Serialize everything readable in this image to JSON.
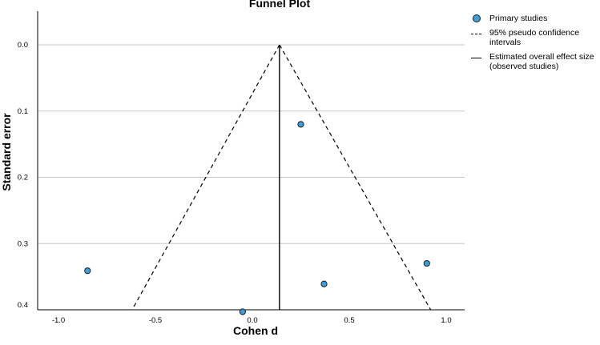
{
  "chart_data": {
    "type": "scatter",
    "title": "Funnel Plot",
    "xlabel": "Cohen d",
    "ylabel": "Standard error",
    "xlim": [
      -1.1,
      1.25
    ],
    "ylim": [
      0.4,
      0.0
    ],
    "y_reversed": true,
    "x_ticks": [
      "-1.0",
      "-0.5",
      "0.0",
      "0.5",
      "1.0"
    ],
    "x_tick_values": [
      -1.0,
      -0.5,
      0.0,
      0.5,
      1.0
    ],
    "y_ticks": [
      "0.0",
      "0.1",
      "0.2",
      "0.3",
      "0.4"
    ],
    "y_tick_values": [
      0.0,
      0.1,
      0.2,
      0.3,
      0.4
    ],
    "grid": "horizontal",
    "legend_position": "right",
    "series": [
      {
        "name": "Primary studies",
        "kind": "points",
        "color": "#3aa0dc",
        "points": [
          {
            "x": -0.85,
            "y": 0.341
          },
          {
            "x": -0.05,
            "y": 0.403
          },
          {
            "x": 0.25,
            "y": 0.12
          },
          {
            "x": 0.37,
            "y": 0.361
          },
          {
            "x": 0.9,
            "y": 0.33
          }
        ]
      },
      {
        "name": "95% pseudo confidence intervals",
        "kind": "dashed-lines",
        "color": "#000000",
        "apex": {
          "x": 0.14,
          "y": 0.0
        },
        "left_end": {
          "x": -0.62,
          "y": 0.4
        },
        "right_end": {
          "x": 0.92,
          "y": 0.4
        }
      },
      {
        "name": "Estimated overall effect size (observed studies)",
        "kind": "vertical-line",
        "color": "#000000",
        "x": 0.14
      }
    ]
  },
  "legend": {
    "items": [
      {
        "label": "Primary studies"
      },
      {
        "label": "95% pseudo confidence intervals"
      },
      {
        "label": "Estimated overall effect size (observed studies)"
      }
    ]
  }
}
